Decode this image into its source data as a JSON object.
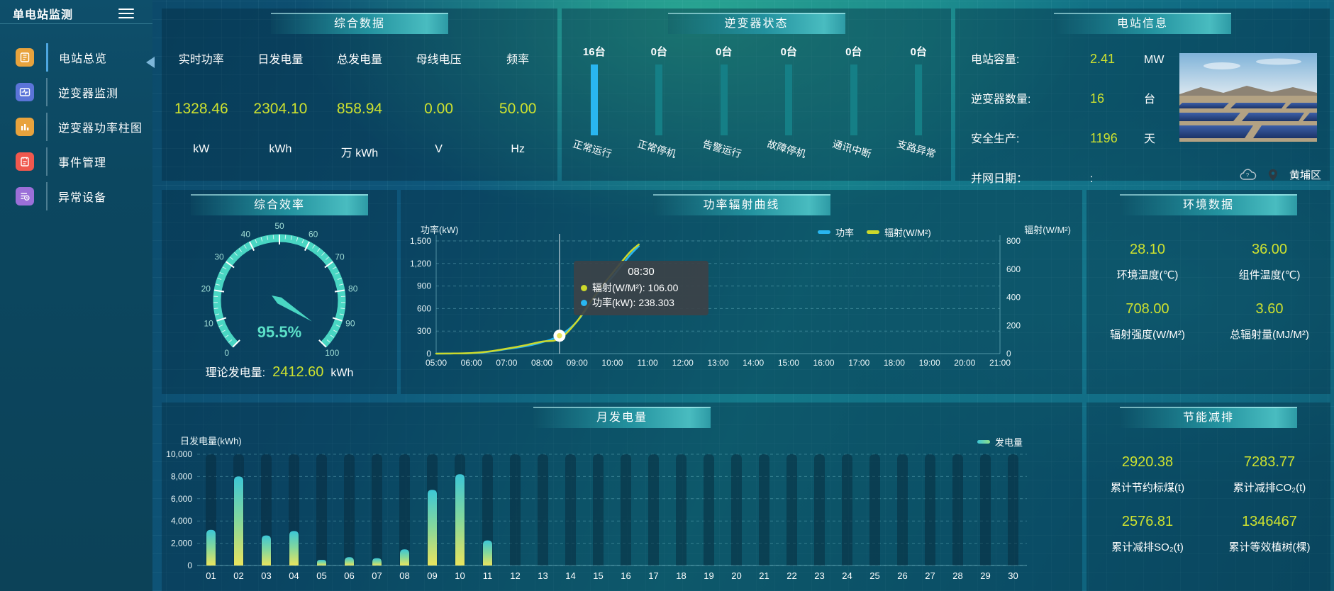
{
  "app_title": "单电站监测",
  "sidebar": {
    "title": "单电站监测",
    "items": [
      {
        "label": "电站总览",
        "icon": "station-overview-icon",
        "color": "#e8a33d",
        "active": true
      },
      {
        "label": "逆变器监测",
        "icon": "inverter-monitor-icon",
        "color": "#5b74d8",
        "active": false
      },
      {
        "label": "逆变器功率柱图",
        "icon": "inverter-power-bars-icon",
        "color": "#e8a33d",
        "active": false
      },
      {
        "label": "事件管理",
        "icon": "event-management-icon",
        "color": "#f0584e",
        "active": false
      },
      {
        "label": "异常设备",
        "icon": "abnormal-device-icon",
        "color": "#9b6fd8",
        "active": false
      }
    ]
  },
  "summary": {
    "title": "综合数据",
    "metrics": [
      {
        "label": "实时功率",
        "value": "1328.46",
        "unit": "kW"
      },
      {
        "label": "日发电量",
        "value": "2304.10",
        "unit": "kWh"
      },
      {
        "label": "总发电量",
        "value": "858.94",
        "unit": "万 kWh"
      },
      {
        "label": "母线电压",
        "value": "0.00",
        "unit": "V"
      },
      {
        "label": "频率",
        "value": "50.00",
        "unit": "Hz"
      }
    ]
  },
  "inverter_status": {
    "title": "逆变器状态",
    "units": [
      {
        "count": "16台",
        "label": "正常运行",
        "color": "#29b6f0"
      },
      {
        "count": "0台",
        "label": "正常停机",
        "color": "#157f86"
      },
      {
        "count": "0台",
        "label": "告警运行",
        "color": "#157f86"
      },
      {
        "count": "0台",
        "label": "故障停机",
        "color": "#157f86"
      },
      {
        "count": "0台",
        "label": "通讯中断",
        "color": "#157f86"
      },
      {
        "count": "0台",
        "label": "支路异常",
        "color": "#157f86"
      }
    ]
  },
  "station_info": {
    "title": "电站信息",
    "rows": [
      {
        "label": "电站容量:",
        "value": "2.41",
        "unit": "MW"
      },
      {
        "label": "逆变器数量:",
        "value": "16",
        "unit": "台"
      },
      {
        "label": "安全生产:",
        "value": "1196",
        "unit": "天"
      },
      {
        "label": "并网日期：",
        "value": ":",
        "unit": ""
      }
    ],
    "location": "黄埔区"
  },
  "efficiency": {
    "title": "综合效率",
    "value_text": "95.5%",
    "theory": {
      "label": "理论发电量:",
      "value": "2412.60",
      "unit": "kWh"
    }
  },
  "curve": {
    "title": "功率辐射曲线",
    "left_axis_name": "功率(kW)",
    "right_axis_name": "辐射(W/M²)",
    "legend": [
      {
        "label": "功率",
        "color": "#29b6f0"
      },
      {
        "label": "辐射(W/M²)",
        "color": "#ccd92b"
      }
    ],
    "tooltip": {
      "time": "08:30",
      "rows": [
        {
          "text": "辐射(W/M²): 106.00",
          "color": "#ccd92b"
        },
        {
          "text": "功率(kW): 238.303",
          "color": "#29b6f0"
        }
      ]
    }
  },
  "environment": {
    "title": "环境数据",
    "metrics": [
      {
        "value": "28.10",
        "label": "环境温度(℃)"
      },
      {
        "value": "36.00",
        "label": "组件温度(℃)"
      },
      {
        "value": "708.00",
        "label": "辐射强度(W/M²)"
      },
      {
        "value": "3.60",
        "label": "总辐射量(MJ/M²)"
      }
    ]
  },
  "monthly": {
    "title": "月发电量",
    "ylabel": "日发电量(kWh)",
    "legend": {
      "label": "发电量",
      "swatch_colors": [
        "#3cc6d6",
        "#8fe08a"
      ]
    }
  },
  "savings": {
    "title": "节能减排",
    "metrics": [
      {
        "value": "2920.38",
        "label": "累计节约标煤(t)"
      },
      {
        "value": "7283.77",
        "label": "累计减排CO₂(t)"
      },
      {
        "value": "2576.81",
        "label": "累计减排SO₂(t)"
      },
      {
        "value": "1346467",
        "label": "累计等效植树(棵)"
      }
    ]
  },
  "colors": {
    "accent_yellow": "#cde12f",
    "gauge_turquoise": "#49d6c3",
    "line_power_blue": "#29b6f0",
    "line_radiation_yellow": "#ccd92b",
    "bar_gradient_top": "#3cc6d6",
    "bar_gradient_bottom": "#e9e45e",
    "inverter_active_bar": "#29b6f0",
    "inverter_idle_bar": "#157f86"
  },
  "chart_data": [
    {
      "type": "gauge",
      "title": "综合效率",
      "value": 95.5,
      "unit": "%",
      "min": 0,
      "max": 100,
      "major_tick_step": 10,
      "minor_tick_step": 2
    },
    {
      "type": "line",
      "title": "功率辐射曲线",
      "x_range": [
        5,
        21
      ],
      "x_ticks": [
        "05:00",
        "06:00",
        "07:00",
        "08:00",
        "09:00",
        "10:00",
        "11:00",
        "12:00",
        "13:00",
        "14:00",
        "15:00",
        "16:00",
        "17:00",
        "18:00",
        "19:00",
        "20:00",
        "21:00"
      ],
      "y_left": {
        "name": "功率(kW)",
        "min": 0,
        "max": 1500,
        "step": 300
      },
      "y_right": {
        "name": "辐射(W/M²)",
        "min": 0,
        "max": 800,
        "step": 200
      },
      "grid": true,
      "legend_position": "top",
      "series": [
        {
          "name": "功率",
          "axis": "left",
          "color": "#29b6f0",
          "points": [
            [
              5,
              0
            ],
            [
              5.5,
              2
            ],
            [
              6,
              6
            ],
            [
              6.5,
              25
            ],
            [
              7,
              60
            ],
            [
              7.5,
              95
            ],
            [
              8,
              150
            ],
            [
              8.5,
              238.303
            ],
            [
              9,
              430
            ],
            [
              9.5,
              750
            ],
            [
              10,
              1020
            ],
            [
              10.5,
              1310
            ],
            [
              10.75,
              1430
            ]
          ]
        },
        {
          "name": "辐射(W/M²)",
          "axis": "right",
          "color": "#ccd92b",
          "points": [
            [
              5,
              0
            ],
            [
              5.5,
              1
            ],
            [
              6,
              4
            ],
            [
              6.5,
              15
            ],
            [
              7,
              35
            ],
            [
              7.5,
              58
            ],
            [
              8,
              85
            ],
            [
              8.5,
              106
            ],
            [
              9,
              230
            ],
            [
              9.5,
              410
            ],
            [
              10,
              570
            ],
            [
              10.5,
              720
            ],
            [
              10.75,
              775
            ]
          ]
        }
      ],
      "crosshair": {
        "x": 8.5,
        "power": 238.303,
        "radiation": 106
      },
      "tooltip": {
        "time": "08:30",
        "radiation": 106.0,
        "power": 238.303
      }
    },
    {
      "type": "bar",
      "title": "月发电量",
      "ylabel": "日发电量(kWh)",
      "ylim": [
        0,
        10000
      ],
      "ystep": 2000,
      "grid": true,
      "legend": "发电量",
      "categories": [
        "01",
        "02",
        "03",
        "04",
        "05",
        "06",
        "07",
        "08",
        "09",
        "10",
        "11",
        "12",
        "13",
        "14",
        "15",
        "16",
        "17",
        "18",
        "19",
        "20",
        "21",
        "22",
        "23",
        "24",
        "25",
        "26",
        "27",
        "28",
        "29",
        "30"
      ],
      "values": [
        3200,
        8000,
        2700,
        3100,
        500,
        750,
        650,
        1450,
        6800,
        8200,
        2250,
        0,
        0,
        0,
        0,
        0,
        0,
        0,
        0,
        0,
        0,
        0,
        0,
        0,
        0,
        0,
        0,
        0,
        0,
        0
      ]
    }
  ]
}
